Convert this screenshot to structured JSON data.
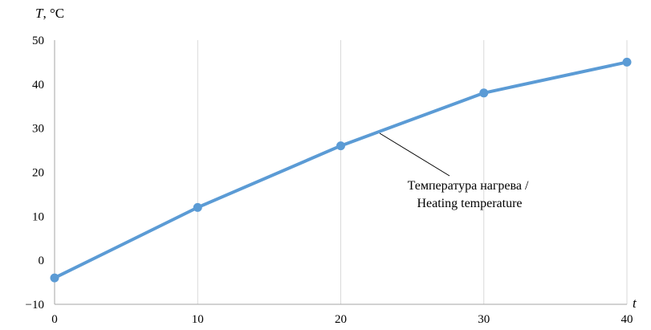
{
  "chart_data": {
    "type": "line",
    "x": [
      0,
      10,
      20,
      30,
      40
    ],
    "series": [
      {
        "values": [
          -4,
          12,
          26,
          38,
          45
        ]
      }
    ],
    "xlim": [
      0,
      40
    ],
    "ylim": [
      -10,
      50
    ],
    "xticks": [
      0,
      10,
      20,
      30,
      40
    ],
    "yticks": [
      -10,
      0,
      10,
      20,
      30,
      40,
      50
    ],
    "ytick_labels": [
      "−10",
      "0",
      "10",
      "20",
      "30",
      "40",
      "50"
    ],
    "ylabel_var": "T",
    "ylabel_unit": ", °C",
    "xlabel": "t",
    "annotation": [
      "Температура нагрева /",
      "Heating temperature"
    ],
    "grid": "vertical",
    "colors": {
      "line": "#5b9bd5",
      "grid": "#d9d9d9"
    }
  }
}
